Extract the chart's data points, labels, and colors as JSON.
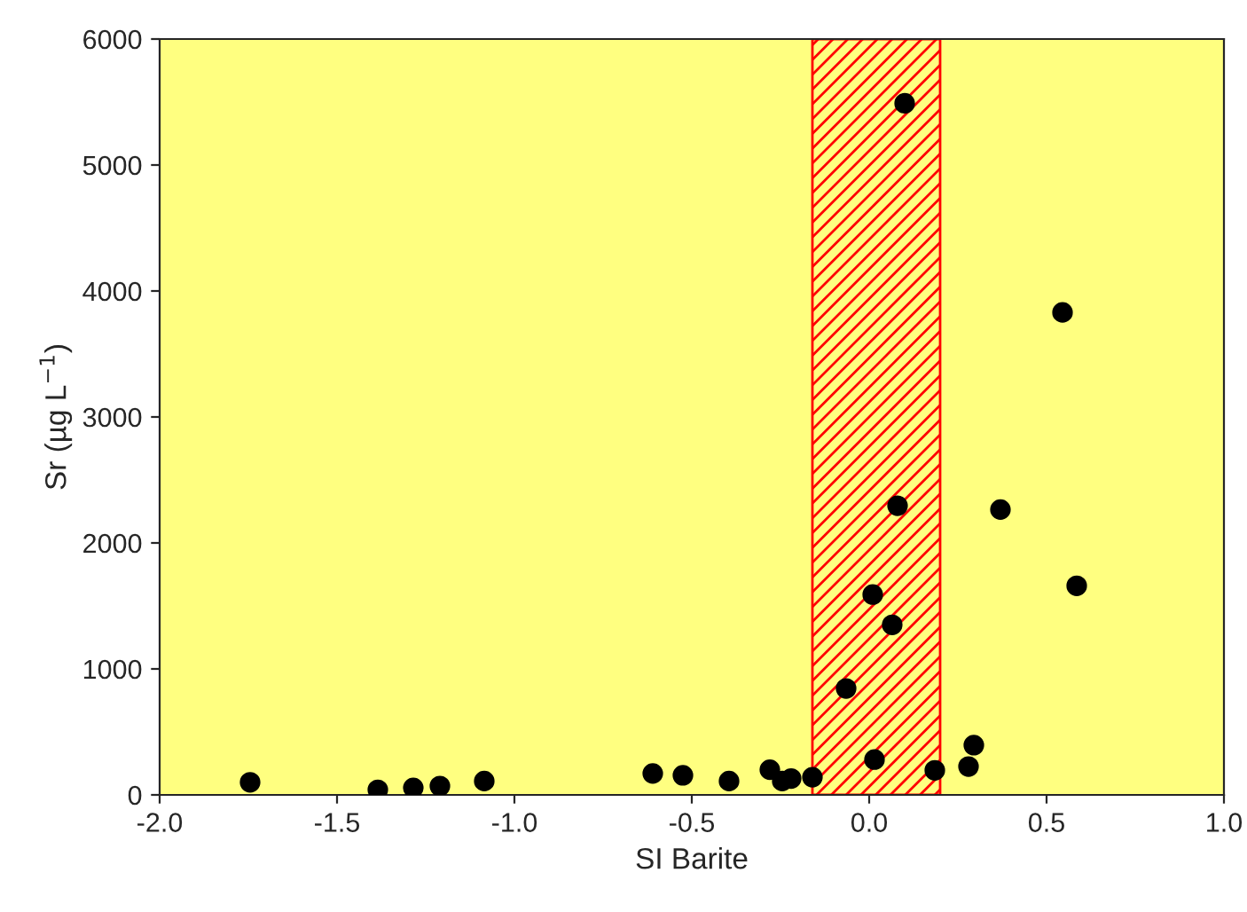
{
  "chart_data": {
    "type": "scatter",
    "xlabel": "SI Barite",
    "ylabel": "Sr (µg L$^{−1}$)",
    "x": [
      -1.745,
      -1.385,
      -1.285,
      -1.21,
      -1.085,
      -0.61,
      -0.525,
      -0.395,
      -0.28,
      -0.245,
      -0.22,
      -0.16,
      -0.065,
      0.015,
      0.01,
      0.065,
      0.08,
      0.1,
      0.185,
      0.28,
      0.295,
      0.37,
      0.545,
      0.585
    ],
    "series": [
      {
        "color": "#000000",
        "values": [
          100,
          40,
          55,
          70,
          110,
          170,
          155,
          110,
          200,
          110,
          130,
          140,
          845,
          280,
          1590,
          1350,
          2295,
          5490,
          195,
          225,
          395,
          2265,
          3830,
          1660
        ]
      }
    ],
    "marker": "circle",
    "xlim": [
      -2,
      1
    ],
    "xticks": [
      {
        "value": -2,
        "label": "-2.0"
      },
      {
        "value": -1.5,
        "label": "-1.5"
      },
      {
        "value": -1,
        "label": "-1.0"
      },
      {
        "value": -0.5,
        "label": "-0.5"
      },
      {
        "value": 0,
        "label": "0.0"
      },
      {
        "value": 0.5,
        "label": "0.5"
      },
      {
        "value": 1,
        "label": "1.0"
      }
    ],
    "ylim": [
      0,
      6000
    ],
    "yticks": [
      0,
      1000,
      2000,
      3000,
      4000,
      5000,
      6000
    ],
    "bands": [
      {
        "axis": "x",
        "from": -0.16,
        "to": 0.2,
        "color": "#ff0000"
      }
    ],
    "grid": false,
    "legend": false
  }
}
